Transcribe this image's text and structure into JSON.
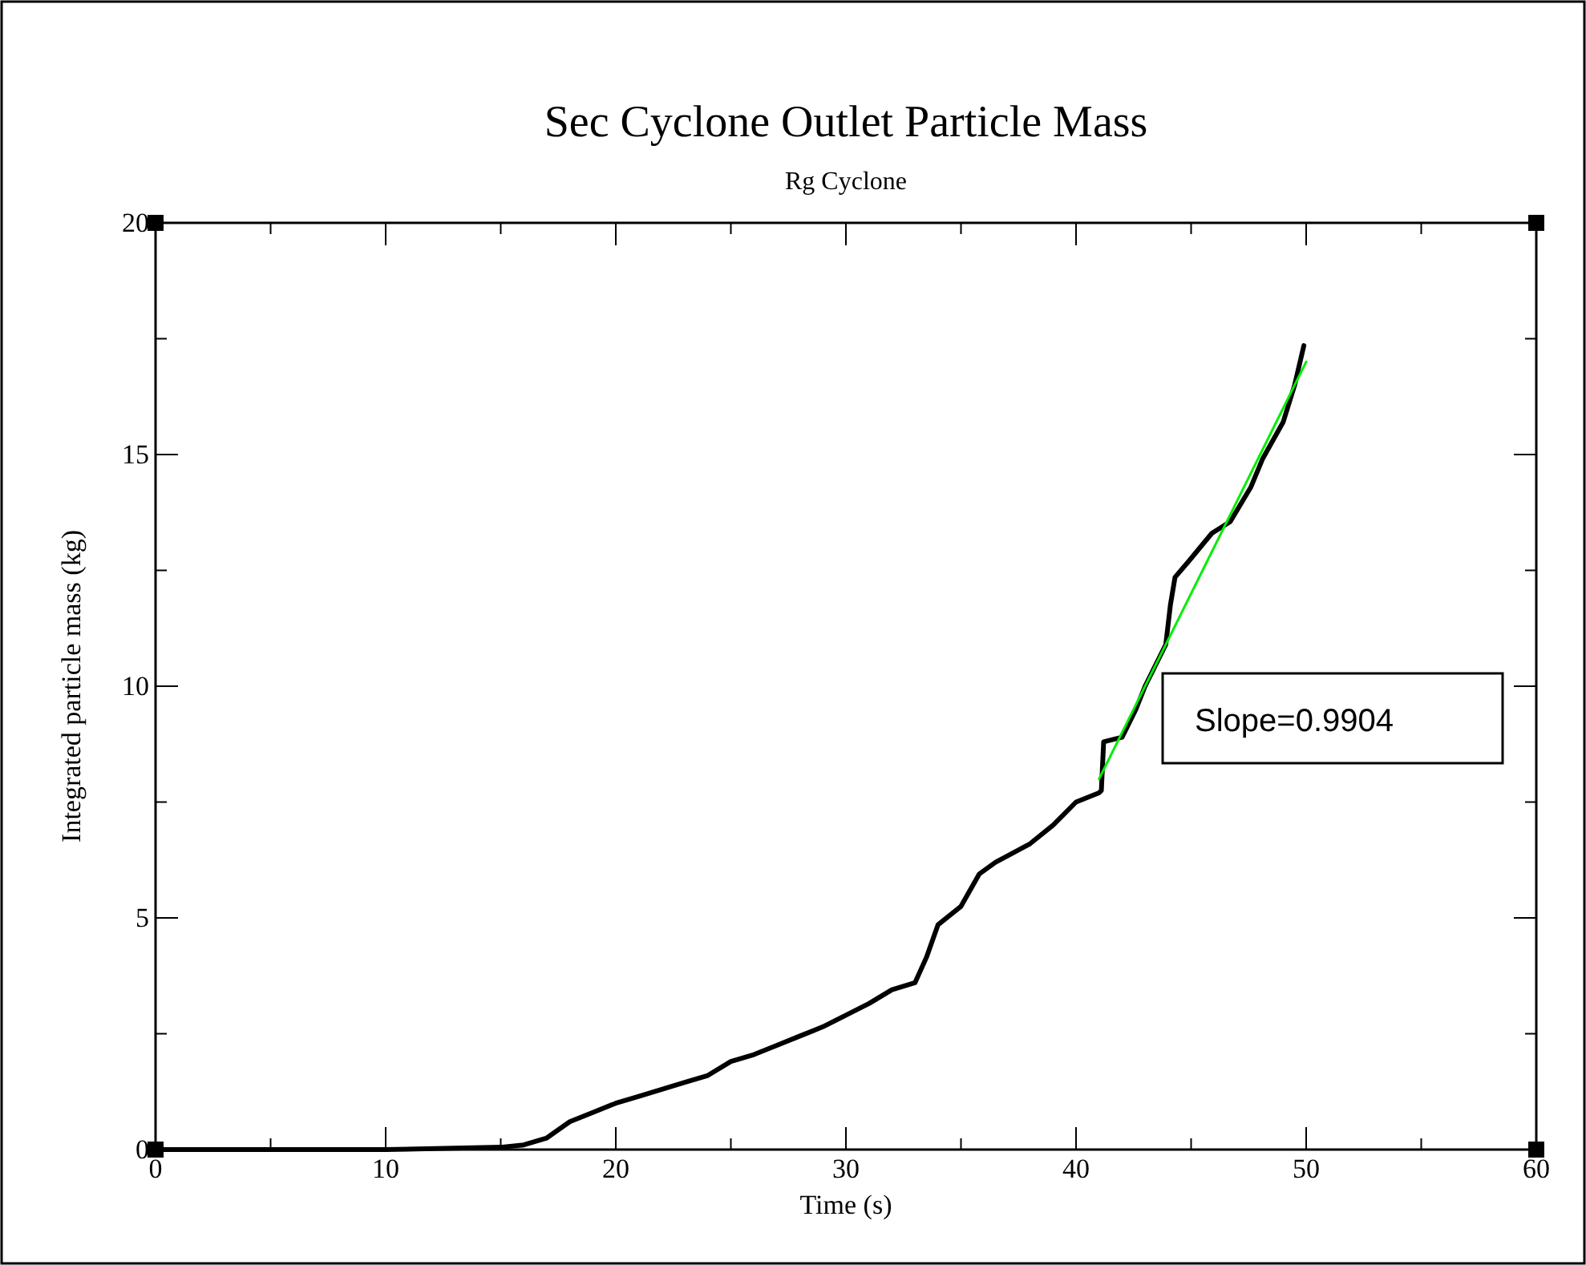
{
  "chart_data": {
    "type": "line",
    "title": "Sec Cyclone Outlet Particle Mass",
    "subtitle": "Rg Cyclone",
    "xlabel": "Time (s)",
    "ylabel": "Integrated particle mass (kg)",
    "xlim": [
      0,
      60
    ],
    "ylim": [
      0,
      20
    ],
    "xticks": [
      0,
      {
        "value": 5,
        "label": null
      },
      10,
      {
        "value": 15,
        "label": null
      },
      20,
      {
        "value": 25,
        "label": null
      },
      30,
      {
        "value": 35,
        "label": null
      },
      40,
      {
        "value": 45,
        "label": null
      },
      50,
      {
        "value": 55,
        "label": null
      },
      60
    ],
    "yticks": [
      0,
      {
        "value": 2.5,
        "label": null
      },
      5,
      {
        "value": 7.5,
        "label": null
      },
      10,
      {
        "value": 12.5,
        "label": null
      },
      15,
      {
        "value": 17.5,
        "label": null
      },
      20
    ],
    "grid": false,
    "marker": "none",
    "line_style": "solid",
    "series": [
      {
        "color": "#000000",
        "x": [
          0,
          5,
          10,
          15,
          16,
          17,
          18,
          19,
          20,
          21,
          22,
          23,
          24,
          25,
          26,
          27,
          28,
          29,
          30,
          31,
          32,
          33,
          33.5,
          34,
          35,
          35.8,
          36.5,
          38,
          39,
          40,
          41,
          41.1,
          41.2,
          42.0,
          42.6,
          43.0,
          43.9,
          44.1,
          44.3,
          44.9,
          45.9,
          46.7,
          47.6,
          48.1,
          49.0,
          49.5,
          49.9
        ],
        "values": [
          0,
          0,
          0,
          0.05,
          0.1,
          0.25,
          0.6,
          0.8,
          1.0,
          1.15,
          1.3,
          1.45,
          1.6,
          1.9,
          2.05,
          2.25,
          2.45,
          2.65,
          2.9,
          3.15,
          3.45,
          3.6,
          4.15,
          4.85,
          5.25,
          5.95,
          6.2,
          6.6,
          7.0,
          7.5,
          7.7,
          7.75,
          8.8,
          8.9,
          9.5,
          10.0,
          10.9,
          11.75,
          12.35,
          12.7,
          13.3,
          13.55,
          14.3,
          14.9,
          15.7,
          16.5,
          17.35
        ]
      },
      {
        "color": "#00ee00",
        "x": [
          41,
          50
        ],
        "values": [
          8.0,
          17.0
        ]
      }
    ],
    "annotations": [
      "Slope=0.9904"
    ]
  }
}
